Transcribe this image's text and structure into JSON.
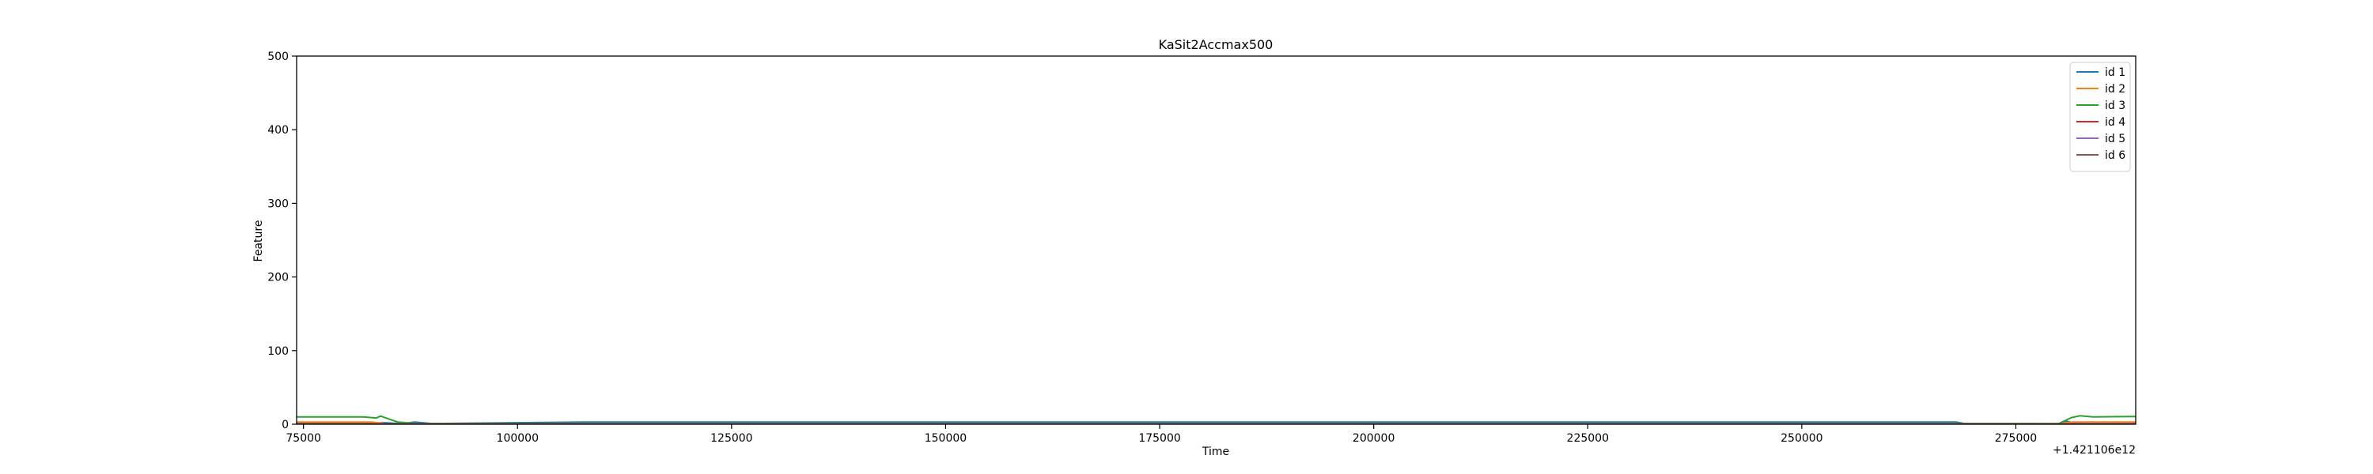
{
  "chart_data": {
    "type": "line",
    "title": "KaSit2Accmax500",
    "xlabel": "Time",
    "ylabel": "Feature",
    "x_offset_text": "+1.421106e12",
    "xlim": [
      74200,
      289000
    ],
    "ylim": [
      0,
      500
    ],
    "xticks": [
      75000,
      100000,
      125000,
      150000,
      175000,
      200000,
      225000,
      250000,
      275000
    ],
    "yticks": [
      0,
      100,
      200,
      300,
      400,
      500
    ],
    "grid": false,
    "legend_position": "top-right",
    "series": [
      {
        "name": "id 1",
        "color": "#1f77b4",
        "points": [
          [
            74200,
            1.5
          ],
          [
            83000,
            1.5
          ],
          [
            84500,
            2.0
          ],
          [
            86500,
            0.8
          ],
          [
            88000,
            3.0
          ],
          [
            90000,
            1.0
          ],
          [
            108000,
            3.0
          ],
          [
            200000,
            3.0
          ],
          [
            268000,
            3.0
          ],
          [
            269000,
            1.0
          ],
          [
            280000,
            0.5
          ],
          [
            281000,
            4.0
          ],
          [
            282000,
            1.0
          ],
          [
            289000,
            1.0
          ]
        ]
      },
      {
        "name": "id 2",
        "color": "#ff7f0e",
        "points": [
          [
            74200,
            3.0
          ],
          [
            83000,
            3.0
          ],
          [
            84500,
            0.5
          ],
          [
            280000,
            0.5
          ],
          [
            281500,
            3.0
          ],
          [
            289000,
            3.0
          ]
        ]
      },
      {
        "name": "id 3",
        "color": "#2ca02c",
        "points": [
          [
            74200,
            10.0
          ],
          [
            82000,
            10.0
          ],
          [
            83500,
            8.5
          ],
          [
            84000,
            11.0
          ],
          [
            86000,
            3.0
          ],
          [
            88000,
            1.0
          ],
          [
            280000,
            1.0
          ],
          [
            281500,
            9.0
          ],
          [
            282500,
            11.5
          ],
          [
            284000,
            10.0
          ],
          [
            289000,
            10.5
          ]
        ]
      },
      {
        "name": "id 4",
        "color": "#d62728",
        "points": [
          [
            74200,
            0.5
          ],
          [
            289000,
            0.5
          ]
        ]
      },
      {
        "name": "id 5",
        "color": "#9467bd",
        "points": [
          [
            74200,
            0.3
          ],
          [
            289000,
            0.3
          ]
        ]
      },
      {
        "name": "id 6",
        "color": "#8c564b",
        "points": [
          [
            74200,
            0.2
          ],
          [
            289000,
            0.2
          ]
        ]
      }
    ]
  }
}
